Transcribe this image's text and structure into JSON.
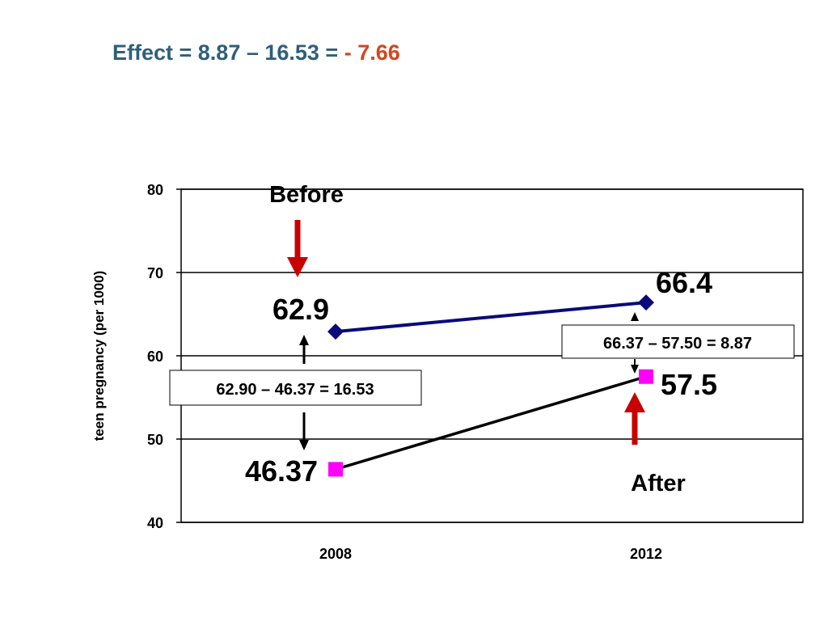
{
  "title": {
    "prefix": "Effect = 8.87 – 16.53 = ",
    "result": "- 7.66"
  },
  "colors": {
    "title": "#2e5f7a",
    "result": "#d9441c",
    "control": "#0a0a7a",
    "treatment_line": "#000000",
    "treatment_marker": "#ff00ff",
    "arrow": "#c80000"
  },
  "chart_data": {
    "type": "line",
    "x": [
      "2008",
      "2012"
    ],
    "ylabel": "teen pregnancy (per 1000)",
    "ylim": [
      40,
      80
    ],
    "yticks": [
      40,
      50,
      60,
      70,
      80
    ],
    "grid": true,
    "series": [
      {
        "values": [
          62.9,
          66.4
        ],
        "marker": "diamond",
        "labels": [
          "62.9",
          "66.4"
        ]
      },
      {
        "values": [
          46.37,
          57.5
        ],
        "marker": "square",
        "labels": [
          "46.37",
          "57.5"
        ]
      }
    ],
    "annotations": {
      "before": "Before",
      "after": "After",
      "diff_2008": "62.90 – 46.37 = 16.53",
      "diff_2012": "66.37 – 57.50 = 8.87"
    }
  }
}
